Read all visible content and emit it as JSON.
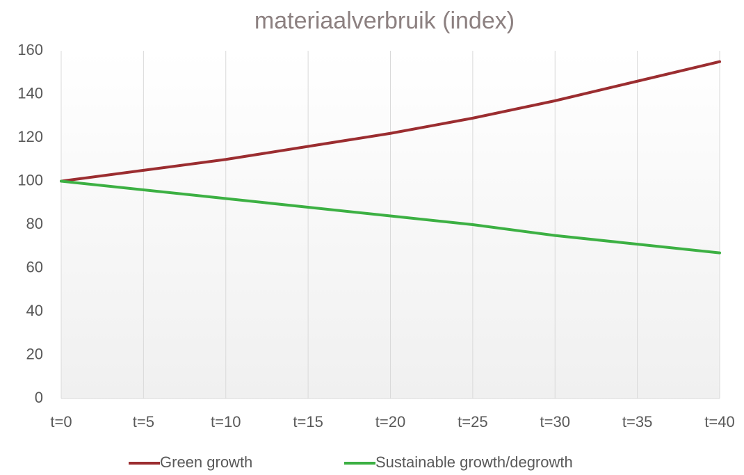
{
  "chart_data": {
    "type": "line",
    "title": "materiaalverbruik (index)",
    "categories": [
      "t=0",
      "t=5",
      "t=10",
      "t=15",
      "t=20",
      "t=25",
      "t=30",
      "t=35",
      "t=40"
    ],
    "series": [
      {
        "name": "Green growth",
        "color": "#9b2d30",
        "values": [
          100,
          105,
          110,
          116,
          122,
          129,
          137,
          146,
          155
        ]
      },
      {
        "name": "Sustainable growth/degrowth",
        "color": "#3cb043",
        "values": [
          100,
          96,
          92,
          88,
          84,
          80,
          75,
          71,
          67
        ]
      }
    ],
    "ylim": [
      0,
      160
    ],
    "yticks": [
      0,
      20,
      40,
      60,
      80,
      100,
      120,
      140,
      160
    ],
    "grid": true,
    "legend": "bottom"
  }
}
